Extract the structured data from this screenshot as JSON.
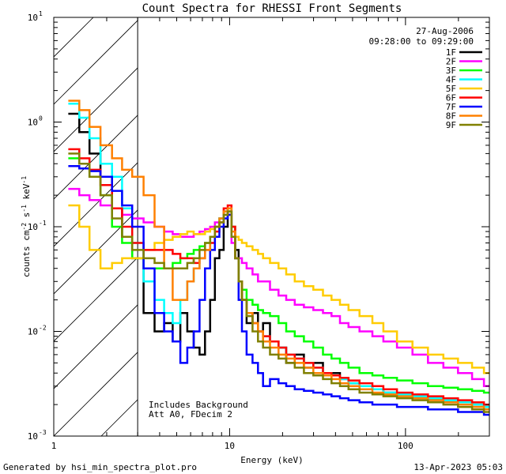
{
  "chart_data": {
    "type": "line",
    "title": "Count Spectra for RHESSI Front Segments",
    "xlabel": "Energy (keV)",
    "ylabel": "counts cm-2 s-1 keV-1",
    "x_scale": "log",
    "y_scale": "log",
    "xlim": [
      1,
      300
    ],
    "ylim": [
      0.001,
      10
    ],
    "x_ticks": [
      {
        "value": 1,
        "label": "1"
      },
      {
        "value": 10,
        "label": "10"
      },
      {
        "value": 100,
        "label": "100"
      }
    ],
    "y_ticks": [
      {
        "value": 0.001,
        "base": "10",
        "exp": "-3"
      },
      {
        "value": 0.01,
        "base": "10",
        "exp": "-2"
      },
      {
        "value": 0.1,
        "base": "10",
        "exp": "-1"
      },
      {
        "value": 1,
        "base": "10",
        "exp": "0"
      },
      {
        "value": 10,
        "base": "10",
        "exp": "1"
      }
    ],
    "hatched_region_max_kev": 3,
    "date": "27-Aug-2006",
    "time_range": "09:28:00 to 09:29:00",
    "annotations": [
      "Includes Background",
      "Att A0, FDecim 2"
    ],
    "x": [
      1.3,
      1.5,
      1.7,
      2.0,
      2.3,
      2.6,
      3.0,
      3.5,
      4.0,
      4.5,
      5.0,
      5.5,
      6.0,
      6.5,
      7.0,
      7.5,
      8.0,
      8.5,
      9.0,
      9.5,
      10.0,
      10.5,
      11.0,
      11.5,
      12.0,
      13.0,
      14.0,
      15.0,
      16.0,
      18.0,
      20.0,
      22.0,
      25.0,
      28.0,
      32.0,
      36.0,
      40.0,
      45.0,
      50.0,
      60.0,
      70.0,
      80.0,
      100.0,
      120.0,
      150.0,
      180.0,
      220.0,
      260.0,
      300.0
    ],
    "series": [
      {
        "name": "1F",
        "color": "#000000",
        "values": [
          1.2,
          0.8,
          0.5,
          0.3,
          0.15,
          0.08,
          0.05,
          0.015,
          0.01,
          0.012,
          0.008,
          0.015,
          0.01,
          0.007,
          0.006,
          0.01,
          0.02,
          0.05,
          0.06,
          0.1,
          0.14,
          0.1,
          0.06,
          0.03,
          0.02,
          0.012,
          0.015,
          0.01,
          0.012,
          0.008,
          0.007,
          0.005,
          0.006,
          0.0045,
          0.005,
          0.0038,
          0.004,
          0.0035,
          0.0032,
          0.003,
          0.0028,
          0.0026,
          0.0025,
          0.0024,
          0.0023,
          0.0022,
          0.0021,
          0.002,
          0.0019
        ]
      },
      {
        "name": "2F",
        "color": "#ff00ff",
        "values": [
          0.23,
          0.2,
          0.18,
          0.16,
          0.15,
          0.13,
          0.12,
          0.11,
          0.1,
          0.09,
          0.085,
          0.08,
          0.08,
          0.085,
          0.09,
          0.095,
          0.1,
          0.11,
          0.12,
          0.14,
          0.13,
          0.07,
          0.05,
          0.05,
          0.045,
          0.04,
          0.035,
          0.03,
          0.03,
          0.025,
          0.022,
          0.02,
          0.018,
          0.017,
          0.016,
          0.015,
          0.014,
          0.012,
          0.011,
          0.01,
          0.009,
          0.008,
          0.007,
          0.006,
          0.005,
          0.0045,
          0.004,
          0.0035,
          0.003
        ]
      },
      {
        "name": "3F",
        "color": "#00ff00",
        "values": [
          0.45,
          0.4,
          0.3,
          0.2,
          0.1,
          0.07,
          0.05,
          0.04,
          0.04,
          0.04,
          0.045,
          0.05,
          0.055,
          0.06,
          0.065,
          0.07,
          0.08,
          0.1,
          0.12,
          0.14,
          0.15,
          0.08,
          0.05,
          0.03,
          0.025,
          0.02,
          0.018,
          0.016,
          0.015,
          0.014,
          0.012,
          0.01,
          0.009,
          0.008,
          0.007,
          0.006,
          0.0055,
          0.005,
          0.0045,
          0.004,
          0.0038,
          0.0036,
          0.0034,
          0.0032,
          0.003,
          0.0029,
          0.0028,
          0.0027,
          0.0026
        ]
      },
      {
        "name": "4F",
        "color": "#00ffff",
        "values": [
          1.5,
          1.1,
          0.7,
          0.4,
          0.3,
          0.15,
          0.07,
          0.03,
          0.02,
          0.015,
          0.012,
          0.02,
          0.03,
          0.04,
          0.05,
          0.06,
          0.08,
          0.1,
          0.12,
          0.14,
          0.15,
          0.1,
          0.05,
          0.03,
          0.02,
          0.015,
          0.012,
          0.01,
          0.009,
          0.008,
          0.007,
          0.006,
          0.0055,
          0.005,
          0.0045,
          0.004,
          0.0038,
          0.0035,
          0.0032,
          0.003,
          0.0028,
          0.0026,
          0.0025,
          0.0024,
          0.0023,
          0.0022,
          0.0021,
          0.002,
          0.0019
        ]
      },
      {
        "name": "5F",
        "color": "#ffcc00",
        "values": [
          0.16,
          0.1,
          0.06,
          0.04,
          0.045,
          0.05,
          0.05,
          0.06,
          0.07,
          0.075,
          0.08,
          0.085,
          0.09,
          0.085,
          0.085,
          0.09,
          0.095,
          0.1,
          0.11,
          0.13,
          0.14,
          0.1,
          0.08,
          0.075,
          0.07,
          0.065,
          0.06,
          0.055,
          0.05,
          0.045,
          0.04,
          0.035,
          0.03,
          0.027,
          0.025,
          0.022,
          0.02,
          0.018,
          0.016,
          0.014,
          0.012,
          0.01,
          0.008,
          0.007,
          0.006,
          0.0055,
          0.005,
          0.0045,
          0.004
        ]
      },
      {
        "name": "6F",
        "color": "#ff0000",
        "values": [
          0.55,
          0.45,
          0.35,
          0.25,
          0.15,
          0.1,
          0.07,
          0.06,
          0.06,
          0.06,
          0.055,
          0.05,
          0.05,
          0.045,
          0.05,
          0.06,
          0.07,
          0.09,
          0.11,
          0.15,
          0.16,
          0.1,
          0.05,
          0.03,
          0.02,
          0.015,
          0.012,
          0.01,
          0.009,
          0.008,
          0.007,
          0.006,
          0.0055,
          0.005,
          0.0045,
          0.004,
          0.0038,
          0.0036,
          0.0034,
          0.0032,
          0.003,
          0.0028,
          0.0026,
          0.0025,
          0.0024,
          0.0023,
          0.0022,
          0.0021,
          0.002
        ]
      },
      {
        "name": "7F",
        "color": "#0000ff",
        "values": [
          0.38,
          0.36,
          0.34,
          0.3,
          0.22,
          0.16,
          0.1,
          0.04,
          0.015,
          0.01,
          0.008,
          0.005,
          0.007,
          0.01,
          0.02,
          0.04,
          0.06,
          0.08,
          0.1,
          0.12,
          0.13,
          0.08,
          0.05,
          0.02,
          0.01,
          0.006,
          0.005,
          0.004,
          0.003,
          0.0035,
          0.0032,
          0.003,
          0.0028,
          0.0027,
          0.0026,
          0.0025,
          0.0024,
          0.0023,
          0.0022,
          0.0021,
          0.002,
          0.002,
          0.0019,
          0.0019,
          0.0018,
          0.0018,
          0.0017,
          0.0017,
          0.0016
        ]
      },
      {
        "name": "8F",
        "color": "#ff8000",
        "values": [
          1.6,
          1.3,
          0.9,
          0.6,
          0.45,
          0.35,
          0.3,
          0.2,
          0.1,
          0.04,
          0.02,
          0.02,
          0.03,
          0.04,
          0.05,
          0.06,
          0.08,
          0.1,
          0.12,
          0.14,
          0.15,
          0.09,
          0.05,
          0.03,
          0.02,
          0.015,
          0.012,
          0.01,
          0.008,
          0.007,
          0.006,
          0.0055,
          0.005,
          0.0045,
          0.004,
          0.0038,
          0.0035,
          0.0032,
          0.003,
          0.0028,
          0.0026,
          0.0025,
          0.0024,
          0.0023,
          0.0022,
          0.0021,
          0.002,
          0.0019,
          0.0018
        ]
      },
      {
        "name": "9F",
        "color": "#808000",
        "values": [
          0.5,
          0.4,
          0.3,
          0.2,
          0.12,
          0.08,
          0.06,
          0.05,
          0.045,
          0.04,
          0.04,
          0.04,
          0.045,
          0.05,
          0.06,
          0.07,
          0.08,
          0.1,
          0.11,
          0.13,
          0.14,
          0.08,
          0.05,
          0.03,
          0.02,
          0.014,
          0.01,
          0.008,
          0.007,
          0.006,
          0.0055,
          0.005,
          0.0045,
          0.004,
          0.0038,
          0.0035,
          0.0032,
          0.003,
          0.0028,
          0.0026,
          0.0025,
          0.0024,
          0.0023,
          0.0022,
          0.0021,
          0.002,
          0.0019,
          0.0018,
          0.0017
        ]
      }
    ]
  },
  "footer": {
    "generated_by": "Generated by hsi_min_spectra_plot.pro",
    "timestamp": "13-Apr-2023 05:03"
  }
}
